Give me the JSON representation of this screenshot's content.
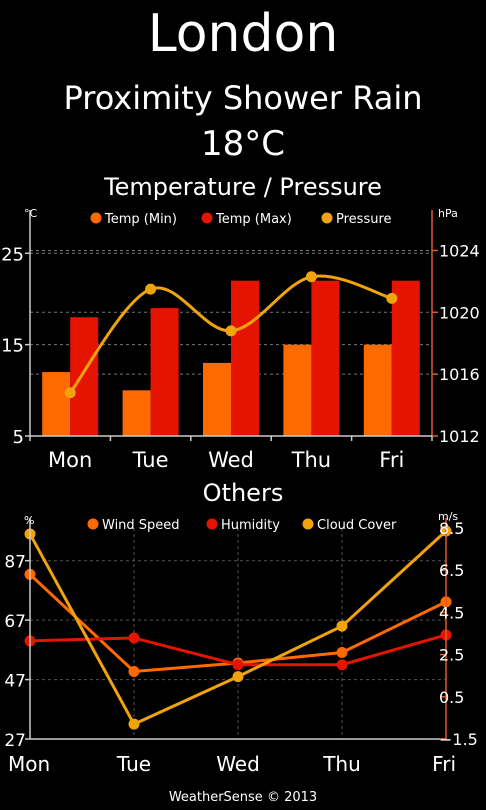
{
  "header": {
    "city": "London",
    "condition": "Proximity Shower Rain",
    "temperature": "18°C"
  },
  "footer": "WeatherSense © 2013",
  "colors": {
    "orange": "#ff6a00",
    "red": "#e51400",
    "yellow": "#f0a30a",
    "background": "#000000"
  },
  "chart_data": [
    {
      "type": "bar",
      "title": "Temperature / Pressure",
      "categories": [
        "Mon",
        "Tue",
        "Wed",
        "Thu",
        "Fri"
      ],
      "ylabel": "°C",
      "ylabel_right": "hPa",
      "ylim": [
        5,
        27
      ],
      "yticks": [
        5,
        15,
        25
      ],
      "y2lim": [
        1012,
        1025
      ],
      "y2ticks": [
        1012,
        1016,
        1020,
        1024
      ],
      "grid": true,
      "legend_position": "top",
      "series": [
        {
          "name": "Temp (Min)",
          "type": "bar",
          "axis": "left",
          "color": "#ff6a00",
          "values": [
            12,
            10,
            13,
            15,
            15
          ]
        },
        {
          "name": "Temp (Max)",
          "type": "bar",
          "axis": "left",
          "color": "#e51400",
          "values": [
            18,
            19,
            22,
            22,
            22
          ]
        },
        {
          "name": "Pressure",
          "type": "line",
          "axis": "right",
          "color": "#f0a30a",
          "values": [
            1014.8,
            1021.5,
            1018.8,
            1022.3,
            1020.9
          ]
        }
      ]
    },
    {
      "type": "line",
      "title": "Others",
      "categories": [
        "Mon",
        "Tue",
        "Wed",
        "Thu",
        "Fri"
      ],
      "ylabel": "%",
      "ylabel_right": "m/s",
      "ylim": [
        27,
        98
      ],
      "yticks": [
        27,
        47,
        67,
        87
      ],
      "y2lim": [
        -1.5,
        8.5
      ],
      "y2ticks": [
        -1.5,
        0.5,
        2.5,
        4.5,
        6.5,
        8.5
      ],
      "grid": true,
      "legend_position": "top",
      "series": [
        {
          "name": "Wind Speed",
          "axis": "right",
          "color": "#ff6a00",
          "values": [
            6.3,
            1.7,
            2.1,
            2.6,
            5.0
          ]
        },
        {
          "name": "Humidity",
          "axis": "left",
          "color": "#e51400",
          "values": [
            60,
            61,
            52,
            52,
            62
          ]
        },
        {
          "name": "Cloud Cover",
          "axis": "left",
          "color": "#f0a30a",
          "values": [
            96,
            32,
            48,
            65,
            97
          ]
        }
      ]
    }
  ]
}
